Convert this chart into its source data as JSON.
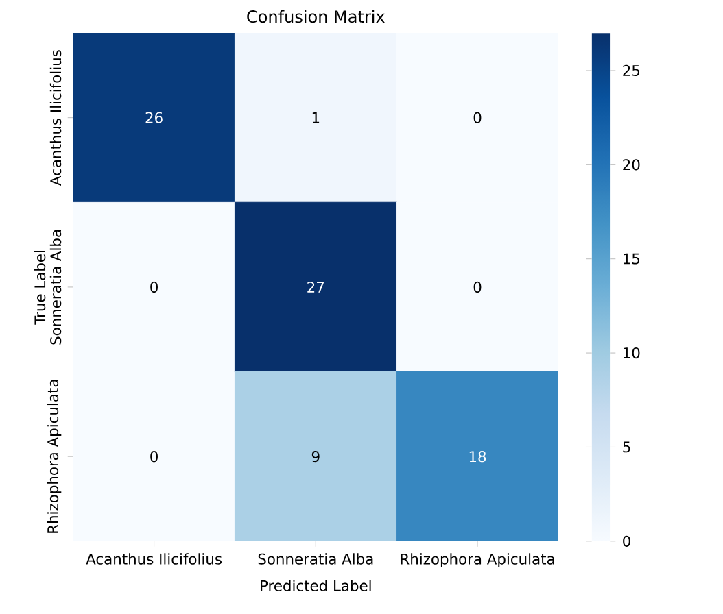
{
  "chart_data": {
    "type": "heatmap",
    "title": "Confusion Matrix",
    "xlabel": "Predicted Label",
    "ylabel": "True Label",
    "categories": [
      "Acanthus Ilicifolius",
      "Sonneratia Alba",
      "Rhizophora Apiculata"
    ],
    "y_categories": [
      "Acanthus Ilicifolius",
      "Sonneratia Alba",
      "Rhizophora Apiculata"
    ],
    "cells": [
      [
        26,
        1,
        0
      ],
      [
        0,
        27,
        0
      ],
      [
        0,
        9,
        18
      ]
    ],
    "clim": [
      0,
      27
    ],
    "cticks": [
      0,
      5,
      10,
      15,
      20,
      25
    ],
    "data_labels": true
  }
}
